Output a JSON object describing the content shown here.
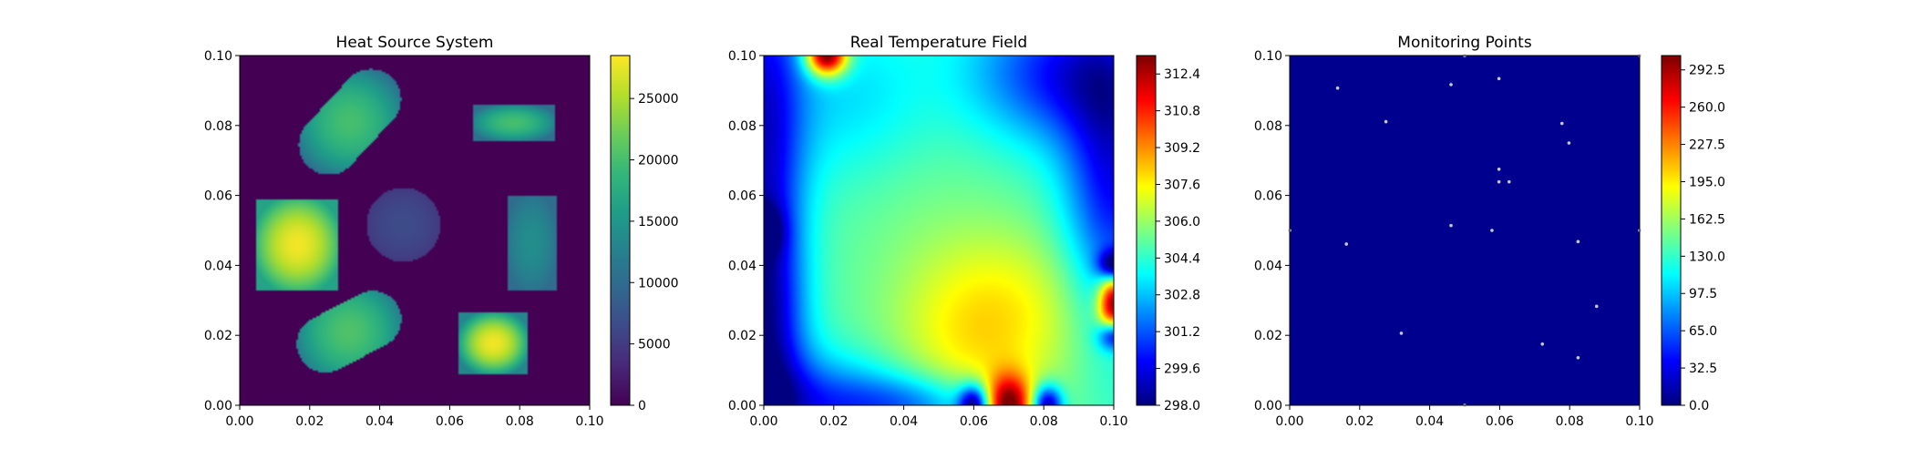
{
  "chart_data": [
    {
      "type": "heatmap",
      "title": "Heat Source System",
      "colormap": "viridis",
      "xlim": [
        0,
        0.1
      ],
      "ylim": [
        0,
        0.1
      ],
      "xticks": [
        "0.00",
        "0.02",
        "0.04",
        "0.06",
        "0.08",
        "0.10"
      ],
      "yticks": [
        "0.00",
        "0.02",
        "0.04",
        "0.06",
        "0.08",
        "0.10"
      ],
      "colorbar": {
        "range": [
          0,
          28500
        ],
        "ticks": [
          0,
          5000,
          10000,
          15000,
          20000,
          25000
        ],
        "tick_labels": [
          "0",
          "5000",
          "10000",
          "15000",
          "20000",
          "25000"
        ]
      },
      "background_value": 0,
      "sources": [
        {
          "shape": "stadium",
          "x1": 0.0255,
          "y1": 0.0745,
          "x2": 0.0375,
          "y2": 0.0875,
          "radius": 0.0086,
          "peak": 20000,
          "edge": 10000
        },
        {
          "shape": "rect",
          "x": 0.0665,
          "y": 0.0755,
          "w": 0.0235,
          "h": 0.0105,
          "peak": 20000,
          "edge": 10500
        },
        {
          "shape": "rect",
          "x": 0.0048,
          "y": 0.0328,
          "w": 0.0235,
          "h": 0.0262,
          "peak": 28000,
          "edge": 16500
        },
        {
          "shape": "circle",
          "cx": 0.0468,
          "cy": 0.0516,
          "r": 0.0106,
          "peak": 6500,
          "edge": 4800
        },
        {
          "shape": "rect",
          "x": 0.0764,
          "y": 0.0328,
          "w": 0.014,
          "h": 0.0272,
          "peak": 14000,
          "edge": 10000
        },
        {
          "shape": "stadium",
          "x1": 0.0245,
          "y1": 0.0175,
          "x2": 0.038,
          "y2": 0.0245,
          "radius": 0.0082,
          "peak": 20500,
          "edge": 12000
        },
        {
          "shape": "rect",
          "x": 0.0627,
          "y": 0.009,
          "w": 0.0197,
          "h": 0.0175,
          "peak": 28000,
          "edge": 13000
        }
      ]
    },
    {
      "type": "heatmap",
      "title": "Real Temperature Field",
      "colormap": "jet",
      "xlim": [
        0,
        0.1
      ],
      "ylim": [
        0,
        0.1
      ],
      "xticks": [
        "0.00",
        "0.02",
        "0.04",
        "0.06",
        "0.08",
        "0.10"
      ],
      "yticks": [
        "0.00",
        "0.02",
        "0.04",
        "0.06",
        "0.08",
        "0.10"
      ],
      "colorbar": {
        "range": [
          298.0,
          313.2
        ],
        "ticks": [
          298.0,
          299.6,
          301.2,
          302.8,
          304.4,
          306.0,
          307.6,
          309.2,
          310.8,
          312.4
        ],
        "tick_labels": [
          "298.0",
          "299.6",
          "301.2",
          "302.8",
          "304.4",
          "306.0",
          "307.6",
          "309.2",
          "310.8",
          "312.4"
        ]
      },
      "base_value": 304.8,
      "features": [
        {
          "x": 0.06,
          "y": 0.015,
          "sx": 0.018,
          "sy": 0.022,
          "amp": 2.6
        },
        {
          "x": 0.075,
          "y": 0.03,
          "sx": 0.02,
          "sy": 0.015,
          "amp": 1.3
        },
        {
          "x": 0.025,
          "y": 0.085,
          "sx": 0.018,
          "sy": 0.018,
          "amp": -2.0
        },
        {
          "x": 0.035,
          "y": 0.07,
          "sx": 0.02,
          "sy": 0.02,
          "amp": 0.8
        },
        {
          "x": 0.085,
          "y": 0.095,
          "sx": 0.018,
          "sy": 0.014,
          "amp": -4.5
        },
        {
          "x": 0.1,
          "y": 0.065,
          "sx": 0.01,
          "sy": 0.03,
          "amp": -5.0
        },
        {
          "x": 0.0,
          "y": 0.08,
          "sx": 0.008,
          "sy": 0.04,
          "amp": -5.0
        },
        {
          "x": 0.0,
          "y": 0.02,
          "sx": 0.008,
          "sy": 0.025,
          "amp": -5.0
        },
        {
          "x": 0.012,
          "y": 0.0,
          "sx": 0.022,
          "sy": 0.01,
          "amp": -4.0
        },
        {
          "x": 0.045,
          "y": 0.0,
          "sx": 0.016,
          "sy": 0.006,
          "amp": -3.0
        },
        {
          "x": 0.07,
          "y": 0.0,
          "sx": 0.0045,
          "sy": 0.006,
          "amp": 8.0
        },
        {
          "x": 0.018,
          "y": 0.1,
          "sx": 0.004,
          "sy": 0.004,
          "amp": 10.0
        },
        {
          "x": 0.1,
          "y": 0.029,
          "sx": 0.003,
          "sy": 0.006,
          "amp": 9.5
        },
        {
          "x": 0.06,
          "y": 0.0,
          "sx": 0.003,
          "sy": 0.004,
          "amp": -7.0
        },
        {
          "x": 0.081,
          "y": 0.0,
          "sx": 0.003,
          "sy": 0.004,
          "amp": -7.0
        },
        {
          "x": 0.1,
          "y": 0.04,
          "sx": 0.003,
          "sy": 0.003,
          "amp": -6.0
        },
        {
          "x": 0.1,
          "y": 0.02,
          "sx": 0.003,
          "sy": 0.003,
          "amp": -6.0
        },
        {
          "x": 0.0,
          "y": 0.05,
          "sx": 0.004,
          "sy": 0.005,
          "amp": -3.0
        }
      ]
    },
    {
      "type": "scatter",
      "title": "Monitoring Points",
      "colormap": "jet",
      "background_value": 0.0,
      "xlim": [
        0,
        0.1
      ],
      "ylim": [
        0,
        0.1
      ],
      "xticks": [
        "0.00",
        "0.02",
        "0.04",
        "0.06",
        "0.08",
        "0.10"
      ],
      "yticks": [
        "0.00",
        "0.02",
        "0.04",
        "0.06",
        "0.08",
        "0.10"
      ],
      "colorbar": {
        "range": [
          0.0,
          305.0
        ],
        "ticks": [
          0.0,
          32.5,
          65.0,
          97.5,
          130.0,
          162.5,
          195.0,
          227.5,
          260.0,
          292.5
        ],
        "tick_labels": [
          "0.0",
          "32.5",
          "65.0",
          "97.5",
          "130.0",
          "162.5",
          "195.0",
          "227.5",
          "260.0",
          "292.5"
        ]
      },
      "points": [
        {
          "x": 0.05,
          "y": 0.1
        },
        {
          "x": 0.1,
          "y": 0.1
        },
        {
          "x": 0.0137,
          "y": 0.0907
        },
        {
          "x": 0.0461,
          "y": 0.0917
        },
        {
          "x": 0.0598,
          "y": 0.0934
        },
        {
          "x": 0.0275,
          "y": 0.0811
        },
        {
          "x": 0.0778,
          "y": 0.0806
        },
        {
          "x": 0.0798,
          "y": 0.075
        },
        {
          "x": 0.0598,
          "y": 0.0675
        },
        {
          "x": 0.0598,
          "y": 0.0639
        },
        {
          "x": 0.0627,
          "y": 0.0639
        },
        {
          "x": 0.0,
          "y": 0.05
        },
        {
          "x": 0.1,
          "y": 0.05
        },
        {
          "x": 0.0461,
          "y": 0.0514
        },
        {
          "x": 0.0578,
          "y": 0.05
        },
        {
          "x": 0.0162,
          "y": 0.0461
        },
        {
          "x": 0.0824,
          "y": 0.0468
        },
        {
          "x": 0.0877,
          "y": 0.0283
        },
        {
          "x": 0.0319,
          "y": 0.0206
        },
        {
          "x": 0.0722,
          "y": 0.0175
        },
        {
          "x": 0.0824,
          "y": 0.0136
        },
        {
          "x": 0.05,
          "y": 0.0
        }
      ]
    }
  ]
}
